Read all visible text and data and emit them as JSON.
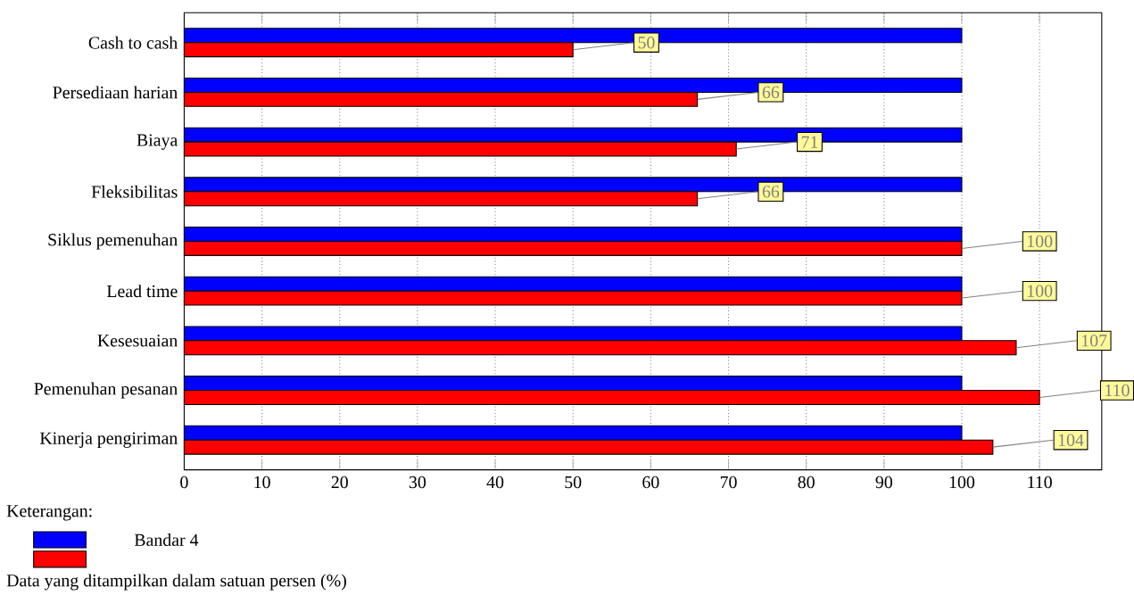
{
  "chart_data": {
    "type": "bar",
    "orientation": "horizontal",
    "categories": [
      "Cash to cash",
      "Persediaan harian",
      "Biaya",
      "Fleksibilitas",
      "Siklus pemenuhan",
      "Lead time",
      "Kesesuaian",
      "Pemenuhan pesanan",
      "Kinerja pengiriman"
    ],
    "series": [
      {
        "name": "Bandar 4",
        "color": "#0000ff",
        "values": [
          100,
          100,
          100,
          100,
          100,
          100,
          100,
          100,
          100
        ]
      },
      {
        "color": "#ff0000",
        "values": [
          50,
          66,
          71,
          66,
          100,
          100,
          107,
          110,
          104
        ],
        "value_labels": [
          "50",
          "66",
          "71",
          "66",
          "100",
          "100",
          "107",
          "110",
          "104"
        ]
      }
    ],
    "xlim": [
      0,
      118
    ],
    "xticks": [
      0,
      10,
      20,
      30,
      40,
      50,
      60,
      70,
      80,
      90,
      100,
      110
    ],
    "grid": "x",
    "legend": "bottom left",
    "legend_title": "Keterangan:",
    "annotations": [
      "Data yang ditampilkan dalam satuan persen (%)"
    ]
  }
}
